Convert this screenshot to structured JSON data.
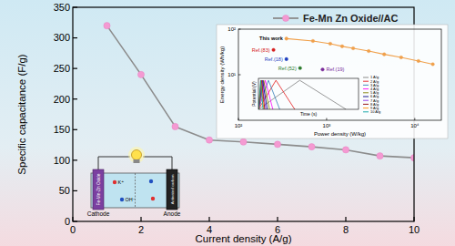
{
  "chart_data": [
    {
      "type": "line",
      "x_label": "Current density (A/g)",
      "y_label": "Specific capacitance (F/g)",
      "x": [
        1,
        2,
        3,
        4,
        5,
        6,
        7,
        8,
        9,
        10
      ],
      "series": [
        {
          "name": "Fe-Mn Zn Oxide//AC",
          "color": "#8c8c8c",
          "marker": "circle",
          "values": [
            320,
            240,
            155,
            133,
            130,
            126,
            122,
            117,
            107,
            104
          ]
        }
      ],
      "xlim": [
        0,
        10
      ],
      "xticks": [
        0,
        2,
        4,
        6,
        8,
        10
      ],
      "ylim": [
        0,
        350
      ],
      "yticks": [
        0,
        50,
        100,
        150,
        200,
        250,
        300,
        350
      ],
      "legend": "upper right",
      "grid": false
    },
    {
      "type": "line",
      "x_label": "Power density (W/kg)",
      "y_label": "Energy density (Wh/kg)",
      "log": true,
      "series": [
        {
          "name": "This work",
          "color": "#f0a04b",
          "marker": "circle",
          "x": [
            350,
            700,
            1100,
            1500,
            2000,
            3000,
            4500,
            7000,
            11000,
            16000
          ],
          "values": [
            62,
            55,
            48,
            42,
            38,
            33,
            28,
            24,
            20,
            17
          ]
        },
        {
          "name": "Ref.(83)",
          "type": "scatter",
          "color": "#d62020",
          "marker": "circle",
          "x": [
            250
          ],
          "values": [
            35
          ]
        },
        {
          "name": "Ref.(18)",
          "type": "scatter",
          "color": "#1f3fbf",
          "marker": "circle",
          "x": [
            350
          ],
          "values": [
            22
          ]
        },
        {
          "name": "Ref.(52)",
          "type": "scatter",
          "color": "#2a7a2a",
          "marker": "circle",
          "x": [
            500
          ],
          "values": [
            14
          ]
        },
        {
          "name": "Ref.(19)",
          "type": "scatter",
          "color": "#7a2a9a",
          "marker": "circle",
          "x": [
            900
          ],
          "values": [
            13
          ]
        }
      ],
      "xlim": [
        100,
        20000
      ],
      "xticks": [
        {
          "value": 100,
          "label": "10²"
        },
        {
          "value": 1000,
          "label": "10³"
        },
        {
          "value": 10000,
          "label": "10⁴"
        }
      ],
      "ylim": [
        1,
        100
      ],
      "yticks": [
        {
          "value": 10,
          "label": "10¹"
        },
        {
          "value": 100,
          "label": "10²"
        }
      ],
      "grid": false
    },
    {
      "type": "line",
      "x_label": "Time (s)",
      "y_label": "Potential (V)",
      "tick_labels": false,
      "xlim": [
        0,
        800
      ],
      "ylim": [
        0,
        1.6
      ],
      "legend": "right",
      "grid": false,
      "series": [
        {
          "name": "1 A/g",
          "color": "#808080",
          "x": [
            0,
            330,
            700
          ],
          "values": [
            0,
            1.5,
            0
          ]
        },
        {
          "name": "2 A/g",
          "color": "#e41a1c",
          "x": [
            0,
            140,
            290
          ],
          "values": [
            0,
            1.5,
            0
          ]
        },
        {
          "name": "3 A/g",
          "color": "#377eb8",
          "x": [
            0,
            80,
            170
          ],
          "values": [
            0,
            1.5,
            0
          ]
        },
        {
          "name": "4 A/g",
          "color": "#ff00ff",
          "x": [
            0,
            55,
            115
          ],
          "values": [
            0,
            1.5,
            0
          ]
        },
        {
          "name": "5 A/g",
          "color": "#808000",
          "x": [
            0,
            42,
            88
          ],
          "values": [
            0,
            1.5,
            0
          ]
        },
        {
          "name": "6 A/g",
          "color": "#000080",
          "x": [
            0,
            34,
            71
          ],
          "values": [
            0,
            1.5,
            0
          ]
        },
        {
          "name": "7 A/g",
          "color": "#8a2be2",
          "x": [
            0,
            28,
            59
          ],
          "values": [
            0,
            1.5,
            0
          ]
        },
        {
          "name": "8 A/g",
          "color": "#8b0000",
          "x": [
            0,
            24,
            50
          ],
          "values": [
            0,
            1.5,
            0
          ]
        },
        {
          "name": "9 A/g",
          "color": "#ff8c00",
          "x": [
            0,
            20,
            42
          ],
          "values": [
            0,
            1.5,
            0
          ]
        },
        {
          "name": "10 A/g",
          "color": "#00a0a0",
          "x": [
            0,
            18,
            37
          ],
          "values": [
            0,
            1.5,
            0
          ]
        }
      ]
    }
  ],
  "schematic": {
    "cathode_label": "Cathode",
    "anode_label": "Anode",
    "cathode_material": "Fe-Mn-Zn Oxide",
    "anode_material": "Activated carbon",
    "ions": [
      "K⁺",
      "OH⁻"
    ]
  }
}
